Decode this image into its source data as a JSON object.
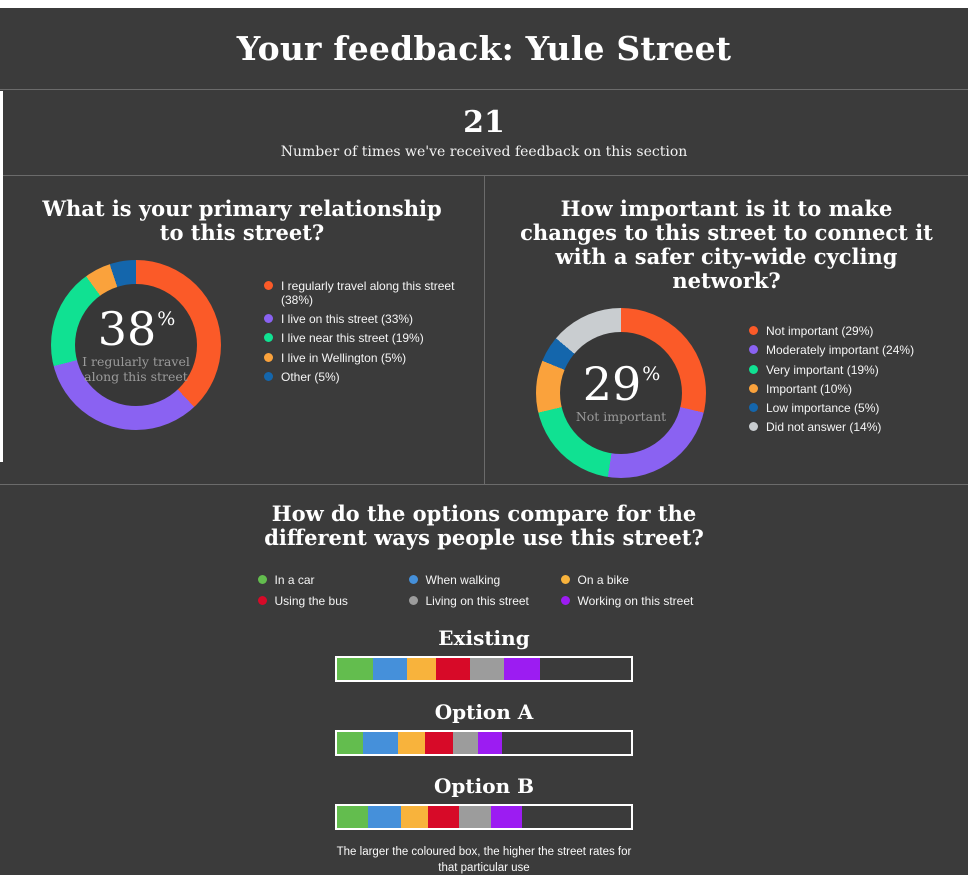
{
  "header": {
    "title": "Your feedback: Yule Street"
  },
  "stats": {
    "value": "21",
    "label": "Number of times we've received feedback on this section"
  },
  "colors": {
    "panel_background": "#3b3b3b",
    "divider": "#6b6b6b",
    "page_background": "#ffffff",
    "muted_text": "#9b9b9b"
  },
  "chart_data": [
    {
      "type": "pie",
      "subtype": "donut",
      "title": "What is your primary relationship to this street?",
      "categories": [
        "I regularly travel along this street",
        "I live on this street",
        "I live near this street",
        "I live in Wellington",
        "Other"
      ],
      "values": [
        38,
        33,
        19,
        5,
        5
      ],
      "colors": [
        "#fb5a28",
        "#8a62f2",
        "#10e192",
        "#faa23c",
        "#1466ac"
      ],
      "legend_labels": [
        "I regularly travel along this street (38%)",
        "I live on this street (33%)",
        "I live near this street (19%)",
        "I live in Wellington (5%)",
        "Other (5%)"
      ],
      "center": {
        "value": "38",
        "suffix": "%",
        "label": "I regularly travel along this street"
      },
      "legend_position": "right",
      "start_angle_deg": 0,
      "direction": "clockwise"
    },
    {
      "type": "pie",
      "subtype": "donut",
      "title": "How important is it to make changes to this street to connect it with a safer city-wide cycling network?",
      "categories": [
        "Not important",
        "Moderately important",
        "Very important",
        "Important",
        "Low importance",
        "Did not answer"
      ],
      "values": [
        29,
        24,
        19,
        10,
        5,
        14
      ],
      "colors": [
        "#fb5a28",
        "#8a62f2",
        "#10e192",
        "#faa23c",
        "#1466ac",
        "#c9cdd0"
      ],
      "legend_labels": [
        "Not important (29%)",
        "Moderately important (24%)",
        "Very important (19%)",
        "Important (10%)",
        "Low importance (5%)",
        "Did not answer (14%)"
      ],
      "center": {
        "value": "29",
        "suffix": "%",
        "label": "Not important"
      },
      "legend_position": "right",
      "start_angle_deg": 0,
      "direction": "clockwise"
    },
    {
      "type": "bar",
      "subtype": "horizontal-stacked-comparison",
      "title": "How do the options compare for the different ways people use this street?",
      "categories": [
        "In a car",
        "When walking",
        "On a bike",
        "Using the bus",
        "Living on this street",
        "Working on this street"
      ],
      "colors": [
        "#63bd4e",
        "#4590da",
        "#f8b33c",
        "#d70a28",
        "#9c9c9c",
        "#9c1cf2"
      ],
      "bars": [
        {
          "name": "Existing",
          "widths_pct": [
            12.4,
            11.3,
            10.1,
            11.3,
            11.8,
            12.2
          ]
        },
        {
          "name": "Option A",
          "widths_pct": [
            9.0,
            11.8,
            9.0,
            9.6,
            8.4,
            8.2
          ]
        },
        {
          "name": "Option B",
          "widths_pct": [
            10.7,
            11.0,
            9.2,
            10.7,
            10.7,
            10.7
          ]
        }
      ],
      "track_total_pct": 100,
      "note": "The larger the coloured box, the higher the street rates for that particular use"
    }
  ]
}
